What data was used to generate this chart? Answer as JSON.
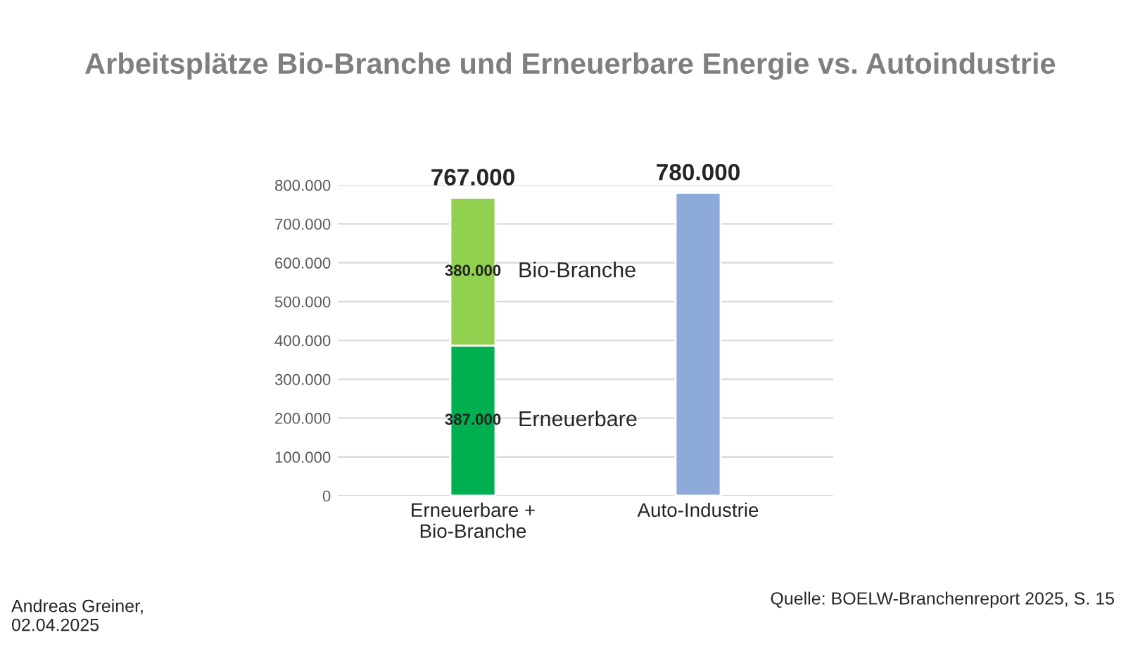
{
  "chart_data": {
    "type": "bar",
    "stacked": true,
    "title": "Arbeitsplätze Bio-Branche und Erneuerbare Energie vs. Autoindustrie",
    "categories": [
      "Erneuerbare +\nBio-Branche",
      "Auto-Industrie"
    ],
    "series": [
      {
        "name": "Erneuerbare",
        "color": "#00b050",
        "values": [
          387000,
          null
        ],
        "value_labels": [
          "387.000",
          null
        ]
      },
      {
        "name": "Bio-Branche",
        "color": "#92d050",
        "values": [
          380000,
          null
        ],
        "value_labels": [
          "380.000",
          null
        ]
      },
      {
        "color": "#8eaadb",
        "values": [
          null,
          780000
        ]
      }
    ],
    "totals": [
      "767.000",
      "780.000"
    ],
    "ylim": [
      0,
      800000
    ],
    "yticks": [
      {
        "value": 0,
        "label": "0"
      },
      {
        "value": 100000,
        "label": "100.000"
      },
      {
        "value": 200000,
        "label": "200.000"
      },
      {
        "value": 300000,
        "label": "300.000"
      },
      {
        "value": 400000,
        "label": "400.000"
      },
      {
        "value": 500000,
        "label": "500.000"
      },
      {
        "value": 600000,
        "label": "600.000"
      },
      {
        "value": 700000,
        "label": "700.000"
      },
      {
        "value": 800000,
        "label": "800.000"
      }
    ],
    "grid": "y",
    "annotations": [
      "Andreas Greiner,\n02.04.2025",
      "Quelle: BOELW-Branchenreport 2025, S. 15"
    ]
  }
}
